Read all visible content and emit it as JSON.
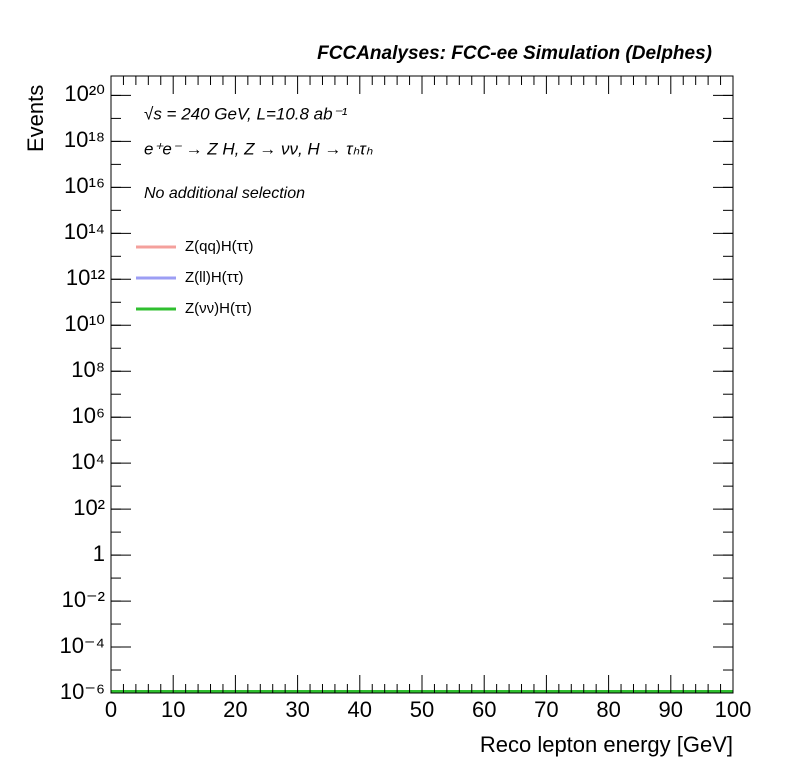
{
  "chart_data": {
    "type": "line",
    "title": "FCCAnalyses: FCC-ee Simulation (Delphes)",
    "x_label": "Reco lepton energy [GeV]",
    "y_label": "Events",
    "annotations": [
      "√s = 240 GeV, L=10.8 ab⁻¹",
      "e⁺e⁻ → Z H, Z → νν, H → τₕτₕ",
      "No additional selection"
    ],
    "x": [
      0,
      100
    ],
    "series": [
      {
        "name": "Z(qq)H(ττ)",
        "color": "#f4a09c",
        "values": [
          1e-06,
          1e-06
        ]
      },
      {
        "name": "Z(ll)H(ττ)",
        "color": "#9c9ef4",
        "values": [
          1e-06,
          1e-06
        ]
      },
      {
        "name": "Z(νν)H(ττ)",
        "color": "#2fbf2f",
        "values": [
          1e-06,
          1e-06
        ]
      }
    ],
    "xlim": [
      0,
      100
    ],
    "xticks": [
      0,
      10,
      20,
      30,
      40,
      50,
      60,
      70,
      80,
      90,
      100
    ],
    "ylim": [
      1e-06,
      7e+20
    ],
    "yticks": [
      {
        "value": 1e-06,
        "label": "10⁻⁶"
      },
      {
        "value": 0.0001,
        "label": "10⁻⁴"
      },
      {
        "value": 0.01,
        "label": "10⁻²"
      },
      1,
      {
        "value": 100.0,
        "label": "10²"
      },
      {
        "value": 10000.0,
        "label": "10⁴"
      },
      {
        "value": 1000000.0,
        "label": "10⁶"
      },
      {
        "value": 100000000.0,
        "label": "10⁸"
      },
      {
        "value": 10000000000.0,
        "label": "10¹⁰"
      },
      {
        "value": 1000000000000.0,
        "label": "10¹²"
      },
      {
        "value": 100000000000000.0,
        "label": "10¹⁴"
      },
      {
        "value": 1e+16,
        "label": "10¹⁶"
      },
      {
        "value": 1e+18,
        "label": "10¹⁸"
      },
      {
        "value": 1e+20,
        "label": "10²⁰"
      }
    ],
    "log_y": true,
    "grid": false,
    "legend": "top-left"
  }
}
